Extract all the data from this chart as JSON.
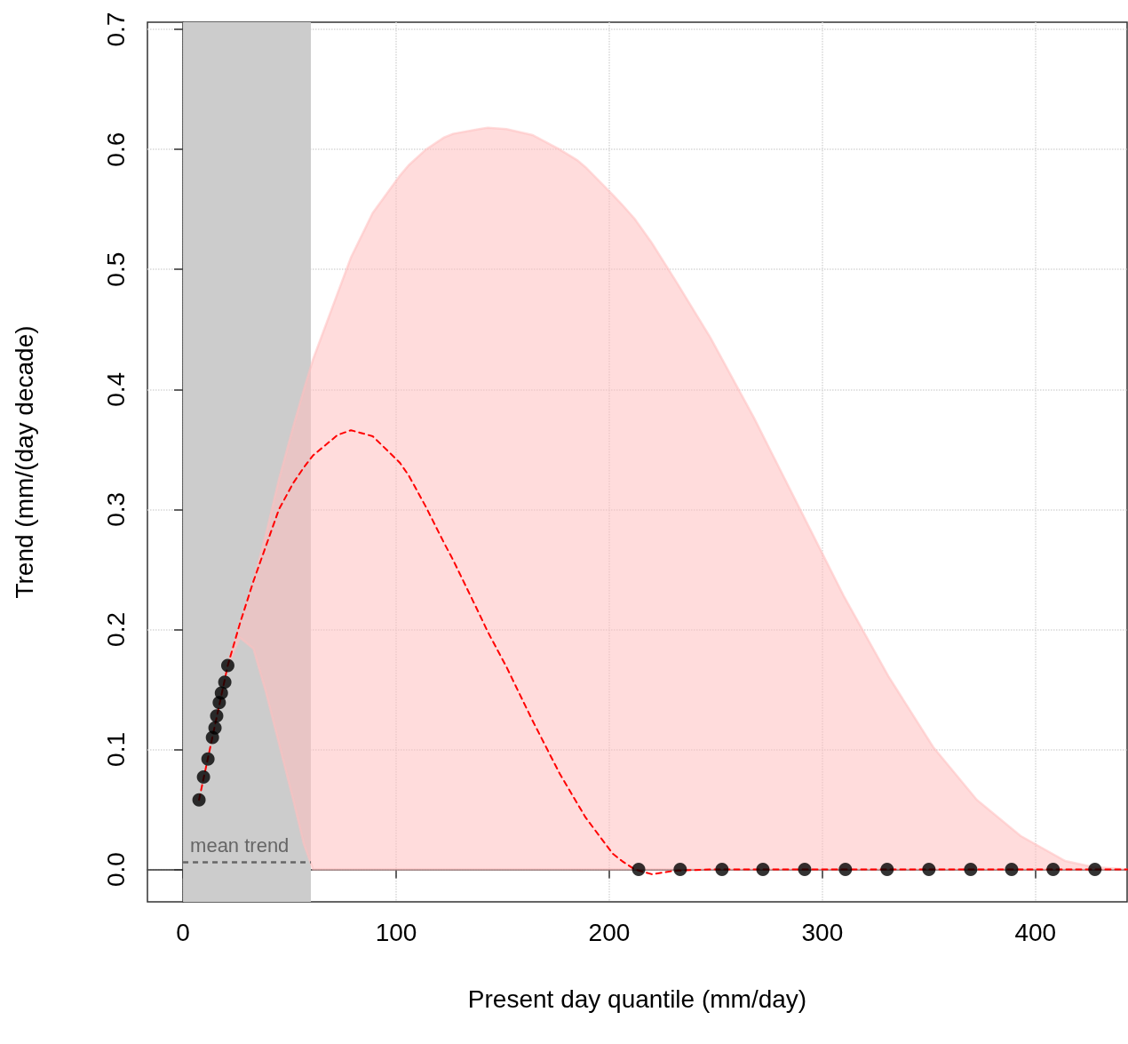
{
  "chart_data": {
    "type": "line",
    "xlabel": "Present day quantile (mm/day)",
    "ylabel": "Trend (mm/(day decade)",
    "xlim": [
      -16.7,
      443
    ],
    "xticks": [
      0,
      100,
      200,
      300,
      400
    ],
    "ylim": [
      -0.027,
      0.706
    ],
    "yticks": [
      {
        "value": 0,
        "label": "0.0"
      },
      0.1,
      0.2,
      0.3,
      0.4,
      0.5,
      0.6,
      0.7
    ],
    "grid": true,
    "series": [
      {
        "color": "#ff0000",
        "line_style": "dashed",
        "marker": "none",
        "x": [
          7.5,
          21,
          26.7,
          33,
          39,
          45,
          51.7,
          56.7,
          61,
          72.5,
          78.8,
          89,
          101.7,
          106,
          114,
          122.5,
          126.7,
          139,
          143,
          151.7,
          164,
          176.7,
          185,
          189,
          201.7,
          206,
          212,
          220,
          231,
          247.5,
          268,
          289,
          310,
          331,
          352,
          372.5,
          393,
          414,
          427,
          443
        ],
        "values": [
          0.058,
          0.17,
          0.205,
          0.24,
          0.27,
          0.3,
          0.322,
          0.335,
          0.345,
          0.362,
          0.366,
          0.361,
          0.339,
          0.328,
          0.302,
          0.272,
          0.258,
          0.213,
          0.198,
          0.169,
          0.124,
          0.08,
          0.055,
          0.043,
          0.013,
          0.007,
          0,
          -0.004,
          -0.001,
          0,
          0,
          0,
          0,
          0,
          0,
          0,
          0,
          0,
          0,
          0
        ],
        "lower": [
          null,
          0.17,
          0.193,
          0.184,
          0.147,
          0.105,
          0.058,
          0.021,
          0,
          0,
          0,
          0,
          0,
          0,
          0,
          0,
          0,
          0,
          0,
          0,
          0,
          0,
          0,
          0,
          0,
          0,
          0,
          0,
          0,
          0,
          0,
          0,
          0,
          0,
          0,
          0,
          0,
          0,
          0,
          0
        ],
        "upper": [
          null,
          0.17,
          0.205,
          0.24,
          0.28,
          0.325,
          0.369,
          0.4,
          0.425,
          0.48,
          0.51,
          0.547,
          0.578,
          0.587,
          0.6,
          0.61,
          0.613,
          0.617,
          0.618,
          0.617,
          0.612,
          0.6,
          0.591,
          0.585,
          0.562,
          0.554,
          0.542,
          0.522,
          0.491,
          0.443,
          0.376,
          0.302,
          0.228,
          0.161,
          0.102,
          0.058,
          0.028,
          0.007,
          0.002,
          0
        ]
      },
      {
        "type": "scatter",
        "color": "#000000",
        "marker": "circle",
        "x": [
          7.5,
          9.6,
          11.7,
          13.8,
          15,
          15.8,
          17,
          18,
          19.6,
          21
        ],
        "values": [
          0.058,
          0.077,
          0.092,
          0.11,
          0.118,
          0.128,
          0.139,
          0.147,
          0.156,
          0.17
        ]
      },
      {
        "type": "scatter",
        "color": "#000000",
        "marker": "circle",
        "x": [
          213.8,
          233.3,
          252.9,
          272.1,
          291.7,
          310.8,
          330.4,
          350,
          369.6,
          388.8,
          408.3,
          427.9
        ],
        "values": [
          0,
          0,
          0,
          0,
          0,
          0,
          0,
          0,
          0,
          0,
          0,
          0
        ]
      }
    ],
    "bands": [
      {
        "axis": "x",
        "from": 0,
        "to": 60,
        "color": "#cccccc"
      }
    ],
    "ref_lines": [
      {
        "axis": "y",
        "value": 0.006,
        "label": "mean trend",
        "color": "#666666",
        "line_style": "dashed"
      }
    ]
  }
}
